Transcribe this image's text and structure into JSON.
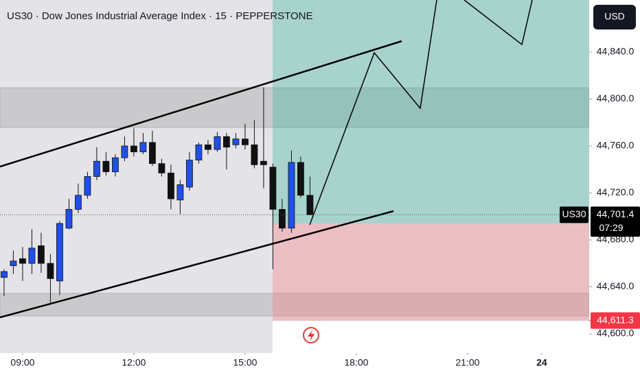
{
  "chart_data": {
    "type": "candlestick",
    "title": "US30 · Dow Jones Industrial Average Index · 15 · PEPPERSTONE",
    "currency": "USD",
    "x": [
      8.5,
      8.75,
      9,
      9.25,
      9.5,
      9.75,
      10,
      10.25,
      10.5,
      10.75,
      11,
      11.25,
      11.5,
      11.75,
      12,
      12.25,
      12.5,
      12.75,
      13,
      13.25,
      13.5,
      13.75,
      14,
      14.25,
      14.5,
      14.75,
      15,
      15.25,
      15.5,
      15.75,
      16,
      16.25,
      16.5,
      16.75
    ],
    "open": [
      44648,
      44658,
      44664,
      44660,
      44675,
      44660,
      44645,
      44690,
      44706,
      44718,
      44734,
      44747,
      44738,
      44750,
      44760,
      44755,
      44763,
      44745,
      44737,
      44714,
      44725,
      44748,
      44761,
      44757,
      44768,
      44761,
      44766,
      44761,
      44747,
      44742,
      44706,
      44690,
      44746,
      44718
    ],
    "high": [
      44655,
      44671,
      44674,
      44689,
      44686,
      44668,
      44696,
      44715,
      44728,
      44738,
      44759,
      44755,
      44753,
      44768,
      44775,
      44771,
      44773,
      44749,
      44744,
      44731,
      44755,
      44763,
      44765,
      44772,
      44771,
      44771,
      44779,
      44782,
      44810,
      44745,
      44715,
      44756,
      44751,
      44734
    ],
    "low": [
      44632,
      44651,
      44645,
      44651,
      44652,
      44626,
      44633,
      44689,
      44703,
      44715,
      44731,
      44735,
      44734,
      44747,
      44751,
      44753,
      44743,
      44734,
      44706,
      44702,
      44722,
      44745,
      44753,
      44755,
      44740,
      44758,
      44757,
      44741,
      44724,
      44655,
      44687,
      44686,
      44716,
      44702
    ],
    "close": [
      44653,
      44662,
      44660,
      44673,
      44660,
      44647,
      44694,
      44706,
      44718,
      44734,
      44747,
      44738,
      44750,
      44760,
      44755,
      44763,
      44745,
      44737,
      44715,
      44727,
      44748,
      44761,
      44757,
      44768,
      44759,
      44766,
      44761,
      44744,
      44744,
      44706,
      44690,
      44746,
      44718,
      44701.4
    ],
    "up_color": "#2050e8",
    "down_color": "#111111",
    "xlim": [
      8.39,
      25.28
    ],
    "session_break": [
      22,
      23
    ],
    "xticks": [
      {
        "value": 9,
        "label": "09:00"
      },
      {
        "value": 12,
        "label": "12:00"
      },
      {
        "value": 15,
        "label": "15:00"
      },
      {
        "value": 18,
        "label": "18:00"
      },
      {
        "value": 21,
        "label": "21:00"
      },
      {
        "value": 24,
        "label": "24"
      }
    ],
    "ylim": [
      44583.6,
      44884.4
    ],
    "yticks": [
      {
        "value": 44600,
        "label": "44,600.0"
      },
      {
        "value": 44640,
        "label": "44,640.0"
      },
      {
        "value": 44680,
        "label": "44,680.0"
      },
      {
        "value": 44720,
        "label": "44,720.0"
      },
      {
        "value": 44760,
        "label": "44,760.0"
      },
      {
        "value": 44800,
        "label": "44,800.0"
      },
      {
        "value": 44840,
        "label": "44,840.0"
      }
    ],
    "last_price": {
      "value": 44701.4,
      "label": "44,701.4"
    },
    "symbol_label": "US30",
    "countdown": "07:29",
    "stop_price": {
      "value": 44611.3,
      "label": "44,611.3"
    }
  }
}
